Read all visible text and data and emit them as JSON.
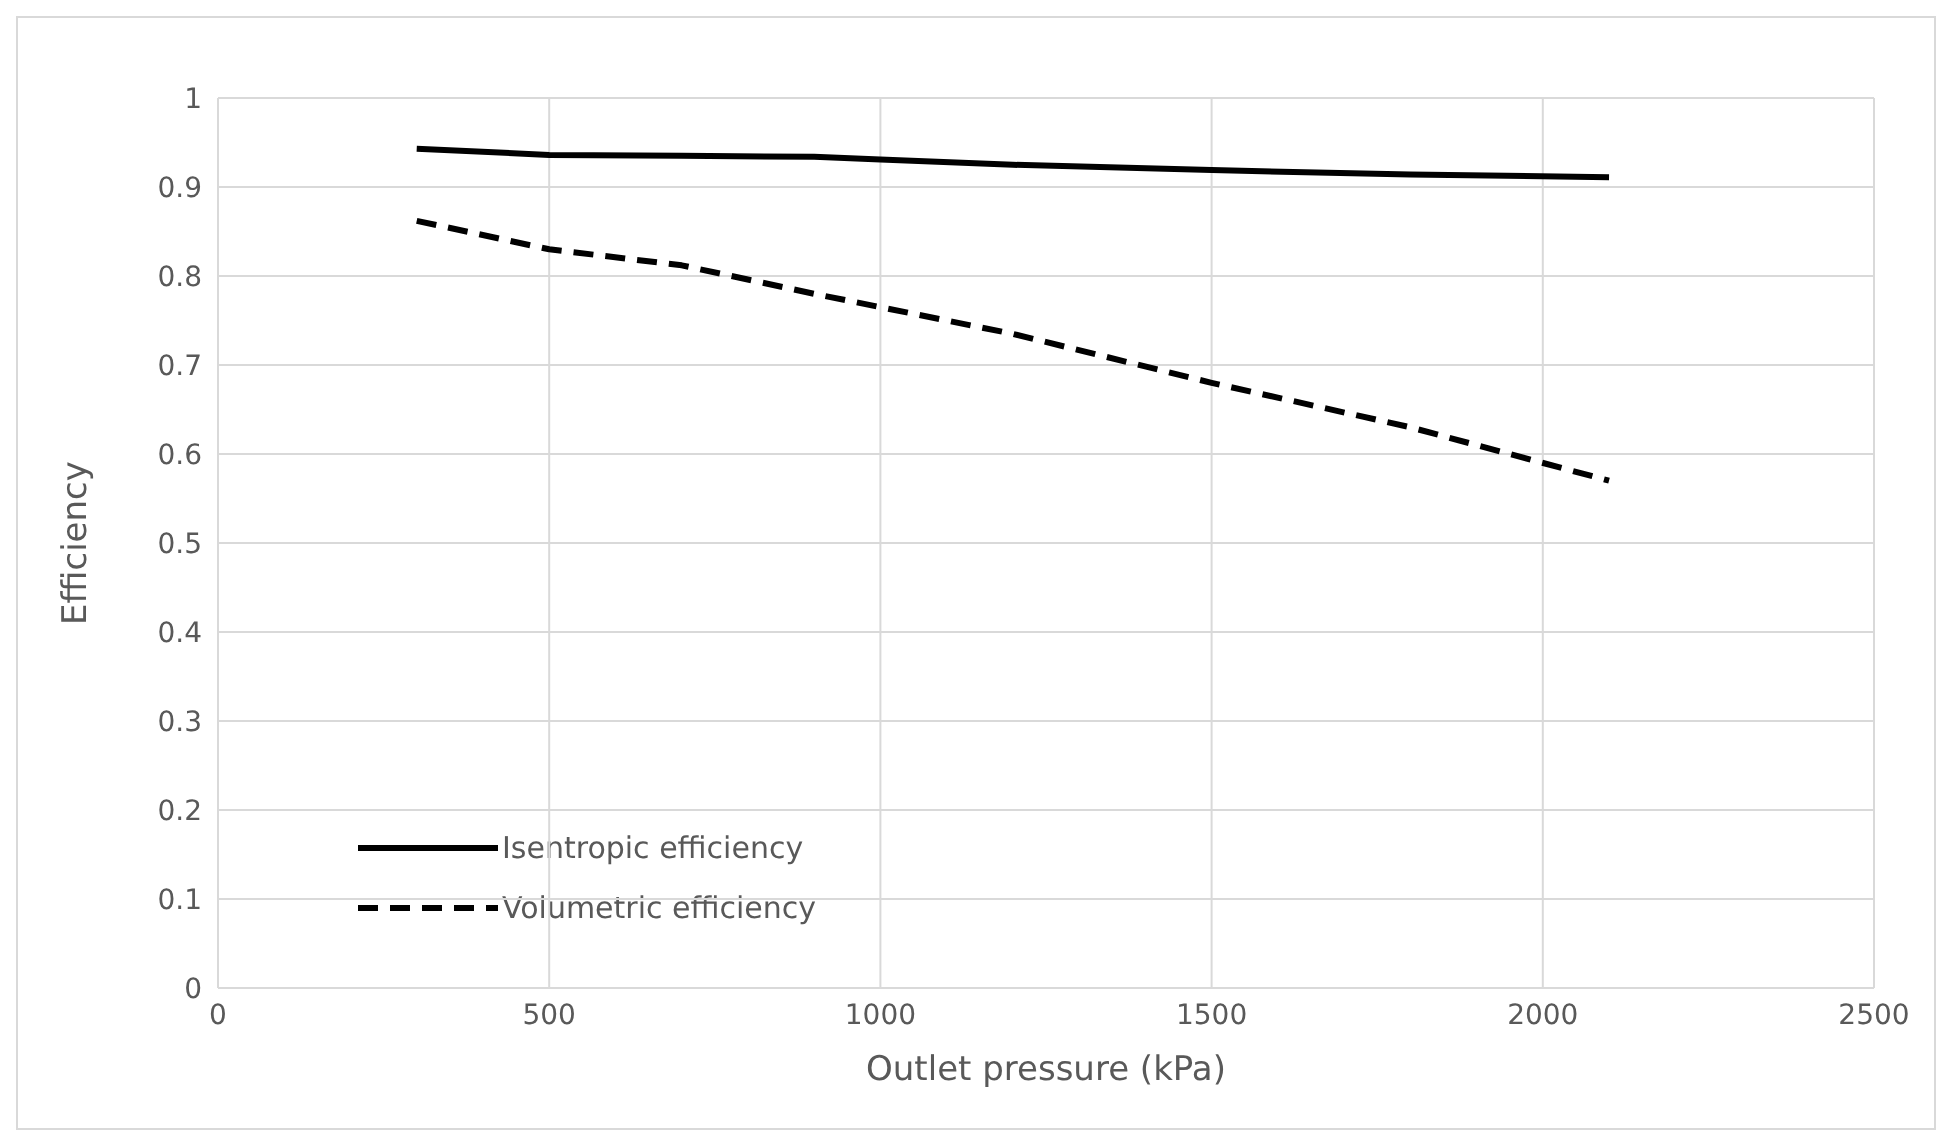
{
  "chart_data": {
    "type": "line",
    "xlabel": "Outlet pressure (kPa)",
    "ylabel": "Efficiency",
    "x": [
      300,
      500,
      700,
      900,
      1000,
      1200,
      1500,
      1800,
      2100
    ],
    "series": [
      {
        "name": "Isentropic efficiency",
        "color": "#000000",
        "line_style": "solid",
        "values": [
          0.943,
          0.936,
          0.935,
          0.934,
          0.931,
          0.925,
          0.919,
          0.914,
          0.911
        ]
      },
      {
        "name": "Volumetric efficiency",
        "color": "#000000",
        "line_style": "dashed",
        "values": [
          0.862,
          0.83,
          0.812,
          0.78,
          0.765,
          0.735,
          0.68,
          0.63,
          0.57
        ]
      }
    ],
    "xlim": [
      0,
      2500
    ],
    "xticks": [
      0,
      500,
      1000,
      1500,
      2000,
      2500
    ],
    "ylim": [
      0,
      1
    ],
    "yticks": [
      0,
      0.1,
      0.2,
      0.3,
      0.4,
      0.5,
      0.6,
      0.7,
      0.8,
      0.9,
      1
    ],
    "grid": true,
    "legend": "bottom left",
    "marker": "none"
  }
}
